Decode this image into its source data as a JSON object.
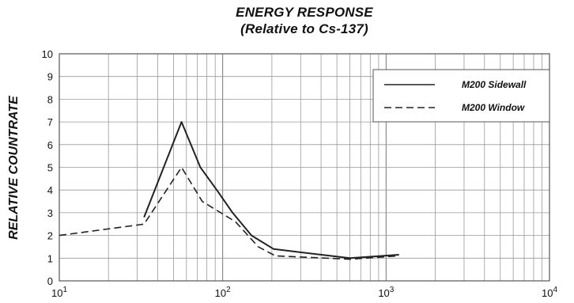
{
  "chart_data": {
    "type": "line",
    "title": "ENERGY RESPONSE",
    "subtitle": "(Relative to Cs-137)",
    "ylabel": "RELATIVE COUNTRATE",
    "xlabel": "",
    "x_scale": "log",
    "xlim": [
      10,
      10000
    ],
    "ylim": [
      0,
      10
    ],
    "x_ticks": [
      {
        "value": 10,
        "base": "10",
        "exp": "1"
      },
      {
        "value": 100,
        "base": "10",
        "exp": "2"
      },
      {
        "value": 1000,
        "base": "10",
        "exp": "3"
      },
      {
        "value": 10000,
        "base": "10",
        "exp": "4"
      }
    ],
    "y_ticks": [
      "0",
      "1",
      "2",
      "3",
      "4",
      "5",
      "6",
      "7",
      "8",
      "9",
      "10"
    ],
    "grid": true,
    "legend_position": "top-right",
    "series": [
      {
        "name": "M200 Sidewall",
        "style": "solid",
        "color": "#222222",
        "points": [
          [
            33,
            2.8
          ],
          [
            56,
            7.0
          ],
          [
            73,
            5.0
          ],
          [
            92,
            4.0
          ],
          [
            115,
            3.0
          ],
          [
            150,
            2.0
          ],
          [
            205,
            1.4
          ],
          [
            600,
            1.0
          ],
          [
            1200,
            1.15
          ]
        ]
      },
      {
        "name": "M200 Window",
        "style": "dashed",
        "color": "#222222",
        "points": [
          [
            10,
            2.0
          ],
          [
            33,
            2.5
          ],
          [
            56,
            5.0
          ],
          [
            75,
            3.5
          ],
          [
            120,
            2.6
          ],
          [
            165,
            1.5
          ],
          [
            210,
            1.1
          ],
          [
            600,
            0.95
          ],
          [
            1200,
            1.1
          ]
        ]
      }
    ]
  }
}
